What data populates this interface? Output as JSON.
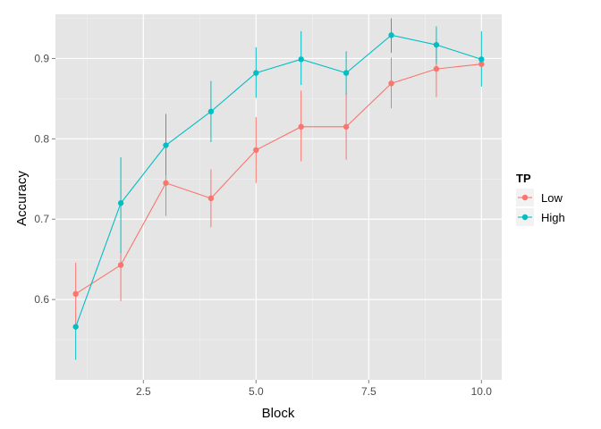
{
  "chart_data": {
    "type": "line",
    "xlabel": "Block",
    "ylabel": "Accuracy",
    "xlim": [
      0.55,
      10.45
    ],
    "ylim": [
      0.5,
      0.955
    ],
    "x_ticks": [
      2.5,
      5.0,
      7.5,
      10.0
    ],
    "x_tick_labels": [
      "2.5",
      "5.0",
      "7.5",
      "10.0"
    ],
    "y_ticks": [
      0.6,
      0.7,
      0.8,
      0.9
    ],
    "y_tick_labels": [
      "0.6",
      "0.7",
      "0.8",
      "0.9"
    ],
    "grid": true,
    "panel_background": "#e5e5e5",
    "legend": {
      "title": "TP",
      "position": "right"
    },
    "x": [
      1,
      2,
      3,
      4,
      5,
      6,
      7,
      8,
      9,
      10
    ],
    "series": [
      {
        "name": "Low",
        "color": "#f8766d",
        "values": [
          0.607,
          0.643,
          0.745,
          0.726,
          0.786,
          0.815,
          0.815,
          0.869,
          0.887,
          0.893
        ],
        "error_lower": [
          0.568,
          0.598,
          0.704,
          0.69,
          0.745,
          0.772,
          0.774,
          0.838,
          0.852,
          0.893
        ],
        "error_upper": [
          0.646,
          0.659,
          0.786,
          0.762,
          0.827,
          0.86,
          0.857,
          0.901,
          0.921,
          0.9
        ]
      },
      {
        "name": "High",
        "color": "#00bfc4",
        "values": [
          0.566,
          0.72,
          0.792,
          0.834,
          0.882,
          0.899,
          0.882,
          0.929,
          0.917,
          0.899
        ],
        "error_lower": [
          0.525,
          0.658,
          0.755,
          0.796,
          0.851,
          0.867,
          0.855,
          0.907,
          0.893,
          0.865
        ],
        "error_upper": [
          0.566,
          0.777,
          0.831,
          0.872,
          0.914,
          0.934,
          0.909,
          0.95,
          0.94,
          0.934
        ]
      }
    ]
  }
}
